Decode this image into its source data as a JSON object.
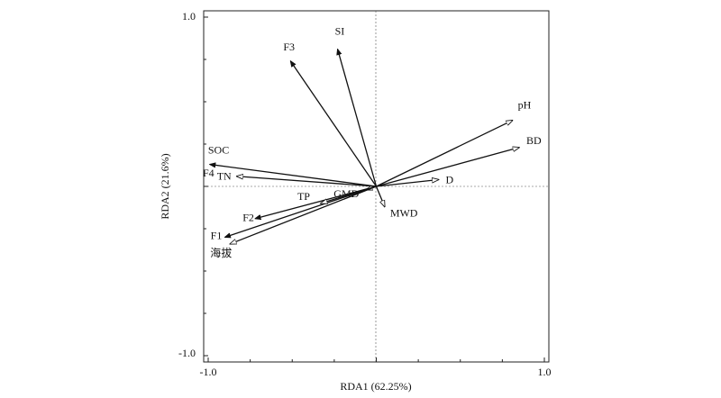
{
  "chart_data": {
    "type": "scatter",
    "subtype": "rda-biplot",
    "title": "",
    "xlabel": "RDA1 (62.25%)",
    "ylabel": "RDA2 (21.6%)",
    "xlim": [
      -1.0,
      1.0
    ],
    "ylim": [
      -1.0,
      1.0
    ],
    "x_tick_labels": [
      "-1.0",
      "1.0"
    ],
    "y_tick_labels": [
      "1.0",
      "-1.0"
    ],
    "zero_lines": true,
    "grid": false,
    "legend": "none",
    "series": [
      {
        "name": "",
        "head_style": "filled",
        "vectors": [
          {
            "label": "SI",
            "x": -0.23,
            "y": 0.81
          },
          {
            "label": "F3",
            "x": -0.51,
            "y": 0.74
          },
          {
            "label": "SOC",
            "x": -0.99,
            "y": 0.13
          },
          {
            "label": "F2",
            "x": -0.72,
            "y": -0.19
          },
          {
            "label": "F1",
            "x": -0.9,
            "y": -0.3
          }
        ]
      },
      {
        "name": "",
        "head_style": "open",
        "vectors": [
          {
            "label": "pH",
            "x": 0.81,
            "y": 0.39
          },
          {
            "label": "BD",
            "x": 0.85,
            "y": 0.23
          },
          {
            "label": "D",
            "x": 0.37,
            "y": 0.04
          },
          {
            "label": "MWD",
            "x": 0.05,
            "y": -0.12
          },
          {
            "label": "GMD",
            "x": -0.06,
            "y": -0.02
          },
          {
            "label": "TP",
            "x": -0.33,
            "y": -0.1
          },
          {
            "label": "TN",
            "x": -0.83,
            "y": 0.06
          },
          {
            "label": "海拔",
            "x": -0.87,
            "y": -0.34
          }
        ]
      }
    ],
    "extra_labels": [
      {
        "label": "F4",
        "x": -1.0,
        "y": 0.08
      }
    ]
  }
}
